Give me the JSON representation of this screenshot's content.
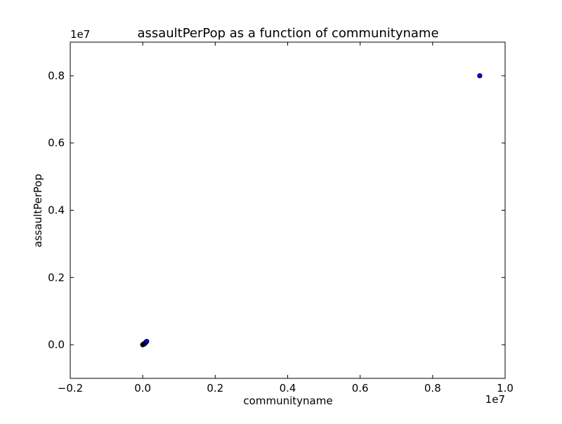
{
  "chart_data": {
    "type": "scatter",
    "title": "assaultPerPop as a function of communityname",
    "xlabel": "communityname",
    "ylabel": "assaultPerPop",
    "x_offset_label": "1e7",
    "y_offset_label": "1e7",
    "xlim": [
      -2000000,
      10000000
    ],
    "ylim": [
      -1000000,
      9000000
    ],
    "x_ticks": [
      {
        "value": -2000000,
        "label": "−0.2"
      },
      {
        "value": 0,
        "label": "0.0"
      },
      {
        "value": 2000000,
        "label": "0.2"
      },
      {
        "value": 4000000,
        "label": "0.4"
      },
      {
        "value": 6000000,
        "label": "0.6"
      },
      {
        "value": 8000000,
        "label": "0.8"
      },
      {
        "value": 10000000,
        "label": "1.0"
      }
    ],
    "y_ticks": [
      {
        "value": 0,
        "label": "0.0"
      },
      {
        "value": 2000000,
        "label": "0.2"
      },
      {
        "value": 4000000,
        "label": "0.4"
      },
      {
        "value": 6000000,
        "label": "0.6"
      },
      {
        "value": 8000000,
        "label": "0.8"
      }
    ],
    "grid": false,
    "marker_color": "#0000ff",
    "marker_edge_color": "#000000",
    "points": [
      {
        "x": 0,
        "y": 0
      },
      {
        "x": 10000,
        "y": 5000
      },
      {
        "x": 20000,
        "y": 15000
      },
      {
        "x": 30000,
        "y": 25000
      },
      {
        "x": 40000,
        "y": 20000
      },
      {
        "x": 50000,
        "y": 35000
      },
      {
        "x": 60000,
        "y": 45000
      },
      {
        "x": 70000,
        "y": 55000
      },
      {
        "x": 80000,
        "y": 65000
      },
      {
        "x": 90000,
        "y": 80000
      },
      {
        "x": 100000,
        "y": 90000
      },
      {
        "x": 110000,
        "y": 100000
      },
      {
        "x": 9300000,
        "y": 8000000
      }
    ]
  }
}
